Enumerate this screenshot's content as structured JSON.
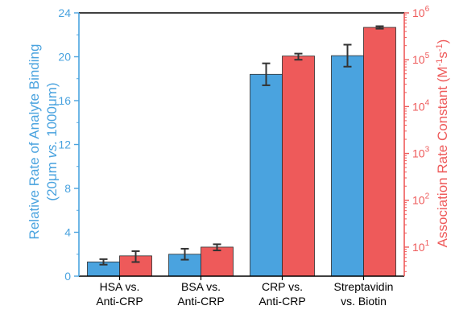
{
  "chart_data": {
    "type": "bar",
    "categories": [
      [
        "HSA vs.",
        "Anti-CRP"
      ],
      [
        "BSA vs.",
        "Anti-CRP"
      ],
      [
        "CRP vs.",
        "Anti-CRP"
      ],
      [
        "Streptavidin",
        "vs. Biotin"
      ]
    ],
    "series": [
      {
        "axis": "left",
        "color": "#4aa3df",
        "values": [
          1.3,
          2.0,
          18.4,
          20.1
        ],
        "errors": [
          0.25,
          0.5,
          1.0,
          1.0
        ]
      },
      {
        "axis": "right",
        "color": "#ee5a5a",
        "values": [
          6.5,
          10,
          120000,
          490000
        ],
        "errors_low": [
          4.8,
          8.5,
          100000,
          460000
        ],
        "errors_high": [
          8.2,
          11.5,
          135000,
          520000
        ]
      }
    ],
    "ylabel_left": {
      "line1": "Relative Rate of Analyte Binding",
      "line2_pre": "(20",
      "line2_mu1": "μ",
      "line2_mid1": "m ",
      "line2_vs": "vs.",
      "line2_mid2": " 1000",
      "line2_mu2": "μ",
      "line2_post": "m)"
    },
    "ylabel_right": {
      "main": "Association Rate Constant (M",
      "sup1": "-1",
      "mid": "s",
      "sup2": "-1",
      "end": ")"
    },
    "ylim_left": [
      0,
      24
    ],
    "yticks_left": [
      0,
      4,
      8,
      12,
      16,
      20,
      24
    ],
    "ylim_right_log10": [
      0.38,
      6
    ],
    "yticks_right_exp": [
      1,
      2,
      3,
      4,
      5,
      6
    ],
    "yticks_right_base": "10",
    "colors": {
      "left_axis": "#4aa3df",
      "right_axis": "#ee5a5a",
      "left_bar": "#4aa3df",
      "right_bar": "#ee5a5a"
    },
    "grid": false,
    "legend": "none"
  }
}
